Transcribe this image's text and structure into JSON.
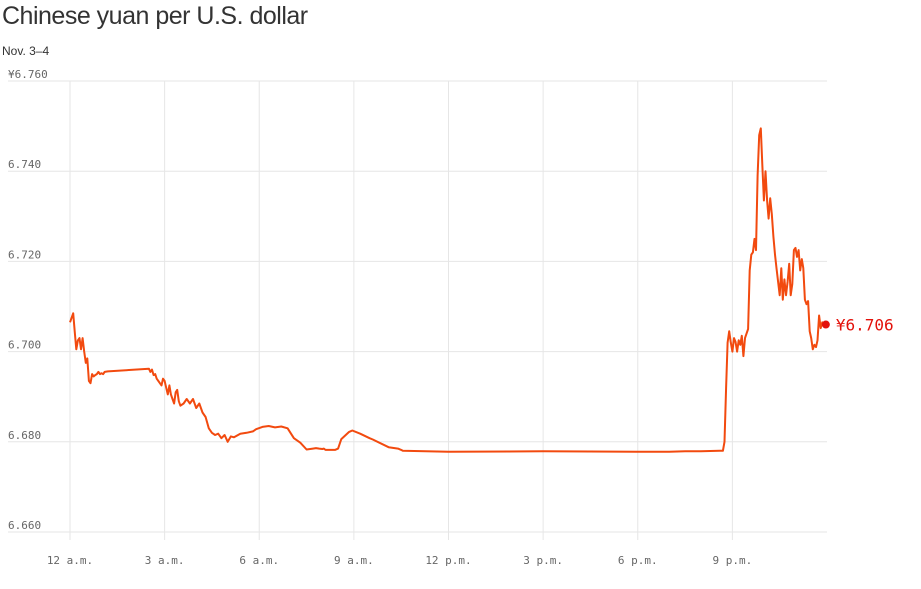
{
  "chart_data": {
    "type": "line",
    "title": "Chinese yuan per U.S. dollar",
    "subtitle": "Nov. 3–4",
    "xlabel": "",
    "ylabel": "",
    "x_unit": "hours after 12 a.m. Nov. 3",
    "xlim": [
      0,
      24
    ],
    "ylim": [
      6.66,
      6.76
    ],
    "y_ticks": [
      6.76,
      6.74,
      6.72,
      6.7,
      6.68,
      6.66
    ],
    "y_tick_labels": [
      "¥6.760",
      "6.740",
      "6.720",
      "6.700",
      "6.680",
      "6.660"
    ],
    "x_ticks": [
      0,
      3,
      6,
      9,
      12,
      15,
      18,
      21
    ],
    "x_tick_labels": [
      "12 a.m.",
      "3 a.m.",
      "6 a.m.",
      "9 a.m.",
      "12 p.m.",
      "3 p.m.",
      "6 p.m.",
      "9 p.m."
    ],
    "grid": true,
    "line_color": "#f24a0f",
    "end_marker_color": "#e3120b",
    "end_label": "¥6.706",
    "end_value": 6.706,
    "series": [
      {
        "x": [
          0.0,
          0.05,
          0.1,
          0.15,
          0.2,
          0.25,
          0.3,
          0.35,
          0.4,
          0.45,
          0.5,
          0.55,
          0.6,
          0.65,
          0.7,
          0.75,
          0.8,
          0.85,
          0.9,
          0.95,
          1.0,
          1.05,
          1.1,
          1.2,
          2.5,
          2.55,
          2.6,
          2.65,
          2.7,
          2.75,
          2.8,
          2.85,
          2.9,
          2.95,
          3.0,
          3.05,
          3.1,
          3.15,
          3.2,
          3.25,
          3.3,
          3.35,
          3.4,
          3.45,
          3.5,
          3.6,
          3.7,
          3.8,
          3.9,
          4.0,
          4.1,
          4.2,
          4.3,
          4.4,
          4.5,
          4.6,
          4.7,
          4.8,
          4.9,
          5.0,
          5.1,
          5.2,
          5.4,
          5.6,
          5.8,
          5.9,
          6.1,
          6.3,
          6.5,
          6.7,
          6.9,
          7.1,
          7.3,
          7.5,
          7.7,
          7.8,
          7.9,
          8.0,
          8.05,
          8.1,
          8.4,
          8.5,
          8.6,
          8.85,
          8.95,
          9.2,
          9.5,
          9.6,
          10.1,
          10.4,
          10.5,
          10.55,
          12.0,
          15.0,
          18.0,
          18.5,
          19.0,
          19.5,
          20.0,
          20.6,
          20.7,
          20.75,
          20.8,
          20.85,
          20.9,
          20.95,
          21.0,
          21.05,
          21.1,
          21.15,
          21.2,
          21.25,
          21.3,
          21.35,
          21.4,
          21.5,
          21.55,
          21.6,
          21.65,
          21.7,
          21.75,
          21.8,
          21.85,
          21.9,
          21.95,
          22.0,
          22.05,
          22.1,
          22.15,
          22.2,
          22.25,
          22.3,
          22.35,
          22.4,
          22.45,
          22.5,
          22.55,
          22.6,
          22.65,
          22.7,
          22.75,
          22.8,
          22.85,
          22.9,
          22.95,
          23.0,
          23.05,
          23.1,
          23.15,
          23.2,
          23.25,
          23.3,
          23.35,
          23.4,
          23.45,
          23.5,
          23.55,
          23.6,
          23.65,
          23.7,
          23.75,
          23.8,
          23.85,
          23.9
        ],
        "y": [
          6.7065,
          6.7075,
          6.7085,
          6.7045,
          6.7005,
          6.7025,
          6.703,
          6.7005,
          6.703,
          6.7,
          6.6975,
          6.6985,
          6.6935,
          6.693,
          6.695,
          6.6945,
          6.6948,
          6.695,
          6.6955,
          6.695,
          6.6952,
          6.695,
          6.6955,
          6.6956,
          6.6962,
          6.6955,
          6.696,
          6.6948,
          6.695,
          6.694,
          6.6935,
          6.693,
          6.6925,
          6.694,
          6.6935,
          6.692,
          6.6905,
          6.6925,
          6.6905,
          6.6895,
          6.6885,
          6.691,
          6.6915,
          6.689,
          6.688,
          6.6885,
          6.6895,
          6.6885,
          6.6895,
          6.6875,
          6.6885,
          6.6865,
          6.6855,
          6.683,
          6.682,
          6.6815,
          6.6818,
          6.6808,
          6.6815,
          6.68,
          6.6812,
          6.681,
          6.6818,
          6.682,
          6.6823,
          6.6828,
          6.6833,
          6.6835,
          6.6832,
          6.6834,
          6.683,
          6.6808,
          6.6798,
          6.6783,
          6.6785,
          6.6786,
          6.6785,
          6.6784,
          6.6785,
          6.6782,
          6.6782,
          6.6785,
          6.6806,
          6.6822,
          6.6825,
          6.6818,
          6.6808,
          6.6805,
          6.6788,
          6.6785,
          6.6782,
          6.678,
          6.6778,
          6.6779,
          6.6778,
          6.6778,
          6.6778,
          6.6779,
          6.6779,
          6.678,
          6.678,
          6.68,
          6.692,
          6.702,
          6.7045,
          6.702,
          6.7,
          6.703,
          6.7022,
          6.7,
          6.7025,
          6.7015,
          6.7035,
          6.699,
          6.703,
          6.705,
          6.718,
          6.7215,
          6.722,
          6.725,
          6.7225,
          6.739,
          6.748,
          6.7495,
          6.7415,
          6.7335,
          6.74,
          6.7335,
          6.7295,
          6.734,
          6.7305,
          6.7255,
          6.7215,
          6.7185,
          6.7155,
          6.7125,
          6.7185,
          6.7115,
          6.716,
          6.7125,
          6.7155,
          6.7195,
          6.7125,
          6.715,
          6.7225,
          6.723,
          6.721,
          6.7225,
          6.718,
          6.7205,
          6.7185,
          6.7115,
          6.7105,
          6.7112,
          6.7045,
          6.703,
          6.7005,
          6.7015,
          6.701,
          6.7025,
          6.708,
          6.7052,
          6.7065,
          6.7058
        ]
      }
    ]
  }
}
